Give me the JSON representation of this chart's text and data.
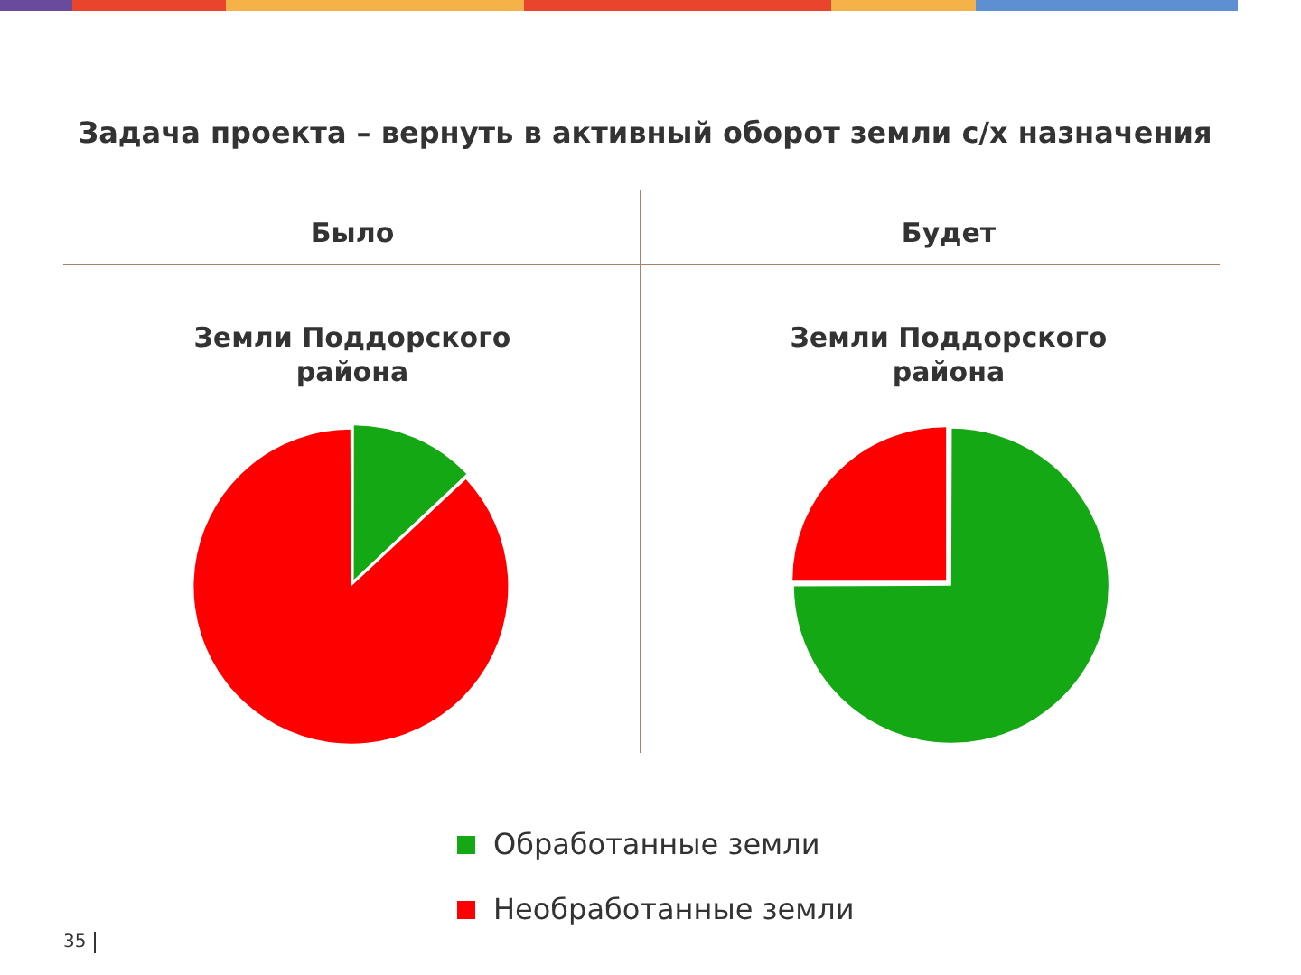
{
  "chart_data": [
    {
      "type": "pie",
      "subtitle": "Было",
      "title": "Земли Поддорского района",
      "categories": [
        "Обработанные земли",
        "Необработанные земли"
      ],
      "values": [
        13,
        87
      ],
      "colors": [
        "#14a814",
        "#ff0000"
      ],
      "legend": "bottom",
      "annotations": [
        "Задача проекта – вернуть в активный оборот земли с/х назначения"
      ]
    },
    {
      "type": "pie",
      "subtitle": "Будет",
      "title": "Земли Поддорского района",
      "categories": [
        null,
        null
      ],
      "values": [
        75,
        25
      ],
      "colors": [
        "#14a814",
        "#ff0000"
      ],
      "annotations": [
        "35"
      ]
    }
  ]
}
